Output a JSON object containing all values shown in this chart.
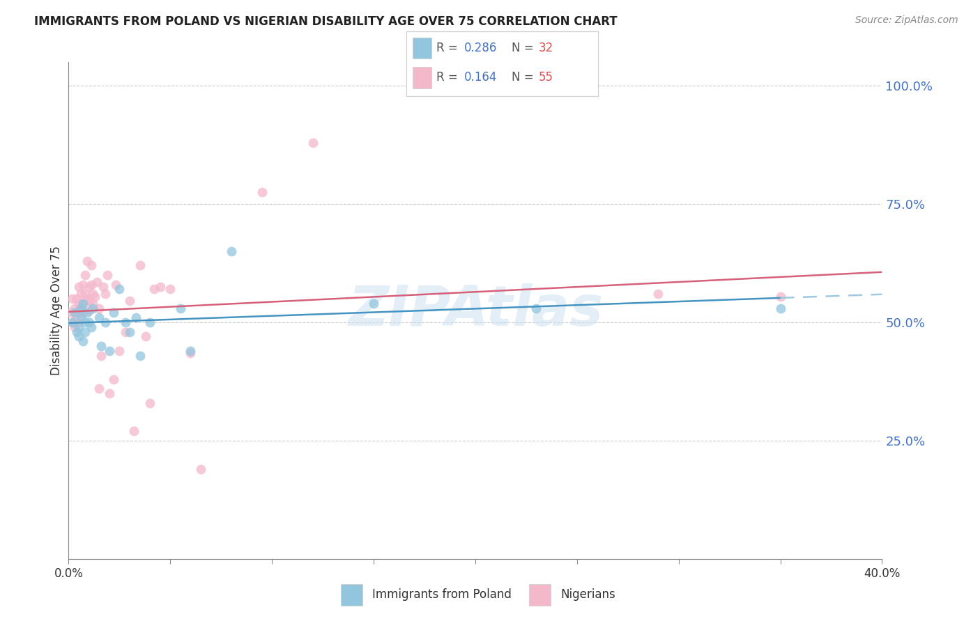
{
  "title": "IMMIGRANTS FROM POLAND VS NIGERIAN DISABILITY AGE OVER 75 CORRELATION CHART",
  "source": "Source: ZipAtlas.com",
  "ylabel": "Disability Age Over 75",
  "xlim": [
    0.0,
    0.4
  ],
  "ylim": [
    0.0,
    1.05
  ],
  "ytick_values": [
    0.0,
    0.25,
    0.5,
    0.75,
    1.0
  ],
  "ytick_labels": [
    "",
    "25.0%",
    "50.0%",
    "75.0%",
    "100.0%"
  ],
  "xtick_values": [
    0.0,
    0.05,
    0.1,
    0.15,
    0.2,
    0.25,
    0.3,
    0.35,
    0.4
  ],
  "poland_R": 0.286,
  "poland_N": 32,
  "nigerian_R": 0.164,
  "nigerian_N": 55,
  "poland_color": "#92c5de",
  "nigerian_color": "#f4b8cb",
  "poland_line_color": "#4393c3",
  "nigerian_line_color": "#d6607a",
  "dashed_line_color": "#9ecae1",
  "watermark": "ZIPAtlas",
  "poland_x": [
    0.002,
    0.003,
    0.004,
    0.005,
    0.005,
    0.006,
    0.006,
    0.007,
    0.007,
    0.008,
    0.008,
    0.009,
    0.01,
    0.011,
    0.012,
    0.015,
    0.016,
    0.018,
    0.02,
    0.022,
    0.025,
    0.028,
    0.03,
    0.033,
    0.035,
    0.04,
    0.055,
    0.06,
    0.08,
    0.15,
    0.23,
    0.35
  ],
  "poland_y": [
    0.5,
    0.52,
    0.48,
    0.49,
    0.47,
    0.53,
    0.51,
    0.46,
    0.54,
    0.5,
    0.48,
    0.52,
    0.5,
    0.49,
    0.53,
    0.51,
    0.45,
    0.5,
    0.44,
    0.52,
    0.57,
    0.5,
    0.48,
    0.51,
    0.43,
    0.5,
    0.53,
    0.44,
    0.65,
    0.54,
    0.53,
    0.53
  ],
  "nigerian_x": [
    0.001,
    0.002,
    0.002,
    0.003,
    0.003,
    0.004,
    0.004,
    0.004,
    0.005,
    0.005,
    0.005,
    0.006,
    0.006,
    0.006,
    0.007,
    0.007,
    0.007,
    0.008,
    0.008,
    0.009,
    0.009,
    0.01,
    0.01,
    0.01,
    0.011,
    0.011,
    0.012,
    0.012,
    0.013,
    0.014,
    0.015,
    0.015,
    0.016,
    0.017,
    0.018,
    0.019,
    0.02,
    0.022,
    0.023,
    0.025,
    0.028,
    0.03,
    0.032,
    0.035,
    0.038,
    0.04,
    0.042,
    0.045,
    0.05,
    0.06,
    0.065,
    0.095,
    0.12,
    0.29,
    0.35
  ],
  "nigerian_y": [
    0.52,
    0.5,
    0.55,
    0.49,
    0.53,
    0.51,
    0.55,
    0.52,
    0.54,
    0.5,
    0.575,
    0.52,
    0.53,
    0.56,
    0.58,
    0.54,
    0.52,
    0.56,
    0.6,
    0.63,
    0.55,
    0.575,
    0.545,
    0.525,
    0.58,
    0.62,
    0.56,
    0.54,
    0.555,
    0.585,
    0.53,
    0.36,
    0.43,
    0.575,
    0.56,
    0.6,
    0.35,
    0.38,
    0.58,
    0.44,
    0.48,
    0.545,
    0.27,
    0.62,
    0.47,
    0.33,
    0.57,
    0.575,
    0.57,
    0.435,
    0.19,
    0.775,
    0.88,
    0.56,
    0.555
  ]
}
